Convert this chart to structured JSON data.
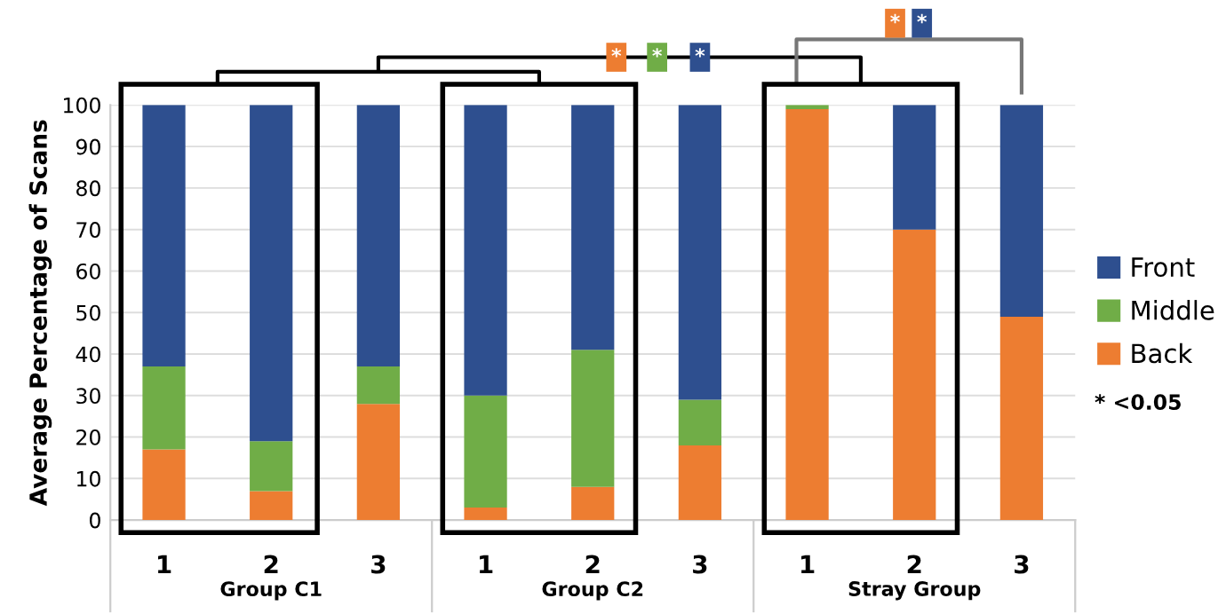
{
  "chart_data": {
    "type": "bar",
    "stacked": true,
    "ylabel": "Average Percentage of Scans",
    "categories": [
      "1",
      "2",
      "3",
      "1",
      "2",
      "3",
      "1",
      "2",
      "3"
    ],
    "series": [
      {
        "name": "Back",
        "color": "#ed7d31",
        "values": [
          17,
          7,
          28,
          3,
          8,
          18,
          99,
          70,
          49
        ]
      },
      {
        "name": "Middle",
        "color": "#70ad47",
        "values": [
          20,
          12,
          9,
          27,
          33,
          11,
          1,
          0,
          0
        ]
      },
      {
        "name": "Front",
        "color": "#2e4f8f",
        "values": [
          63,
          81,
          63,
          70,
          59,
          71,
          0,
          30,
          51
        ]
      }
    ],
    "ylim": [
      0,
      100
    ],
    "yticks": [
      0,
      10,
      20,
      30,
      40,
      50,
      60,
      70,
      80,
      90,
      100
    ],
    "grid": "y",
    "legend": "right",
    "annotations": [
      "Group C1",
      "Group C2",
      "Stray Group",
      "* <0.05",
      "*",
      "*",
      "*",
      "*",
      "*"
    ]
  }
}
